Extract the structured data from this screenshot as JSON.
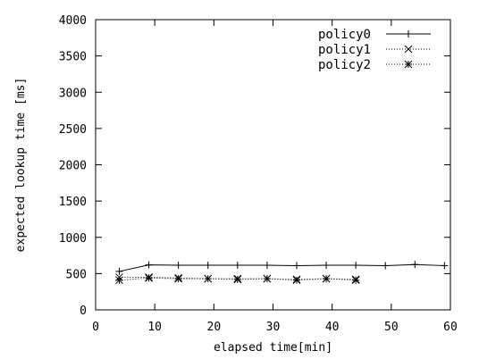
{
  "chart_data": {
    "type": "line",
    "title": "",
    "xlabel": "elapsed time[min]",
    "ylabel": "expected lookup time [ms]",
    "xlim": [
      0,
      60
    ],
    "ylim": [
      0,
      4000
    ],
    "xticks": [
      0,
      10,
      20,
      30,
      40,
      50,
      60
    ],
    "yticks": [
      0,
      500,
      1000,
      1500,
      2000,
      2500,
      3000,
      3500,
      4000
    ],
    "grid": false,
    "legend_position": "top-right",
    "series": [
      {
        "name": "policy0",
        "marker": "plus",
        "line": "solid",
        "x": [
          4,
          9,
          14,
          19,
          24,
          29,
          34,
          39,
          44,
          49,
          54,
          59
        ],
        "y": [
          530,
          620,
          615,
          615,
          615,
          615,
          610,
          615,
          615,
          610,
          625,
          610
        ]
      },
      {
        "name": "policy1",
        "marker": "cross",
        "line": "dotted",
        "x": [
          4,
          9,
          14,
          19,
          24,
          29,
          34,
          39,
          44
        ],
        "y": [
          450,
          450,
          440,
          430,
          430,
          430,
          420,
          430,
          420
        ]
      },
      {
        "name": "policy2",
        "marker": "star",
        "line": "dotted",
        "x": [
          4,
          9,
          14,
          19,
          24,
          29,
          34,
          39,
          44
        ],
        "y": [
          410,
          440,
          430,
          430,
          420,
          430,
          410,
          430,
          410
        ]
      }
    ]
  }
}
